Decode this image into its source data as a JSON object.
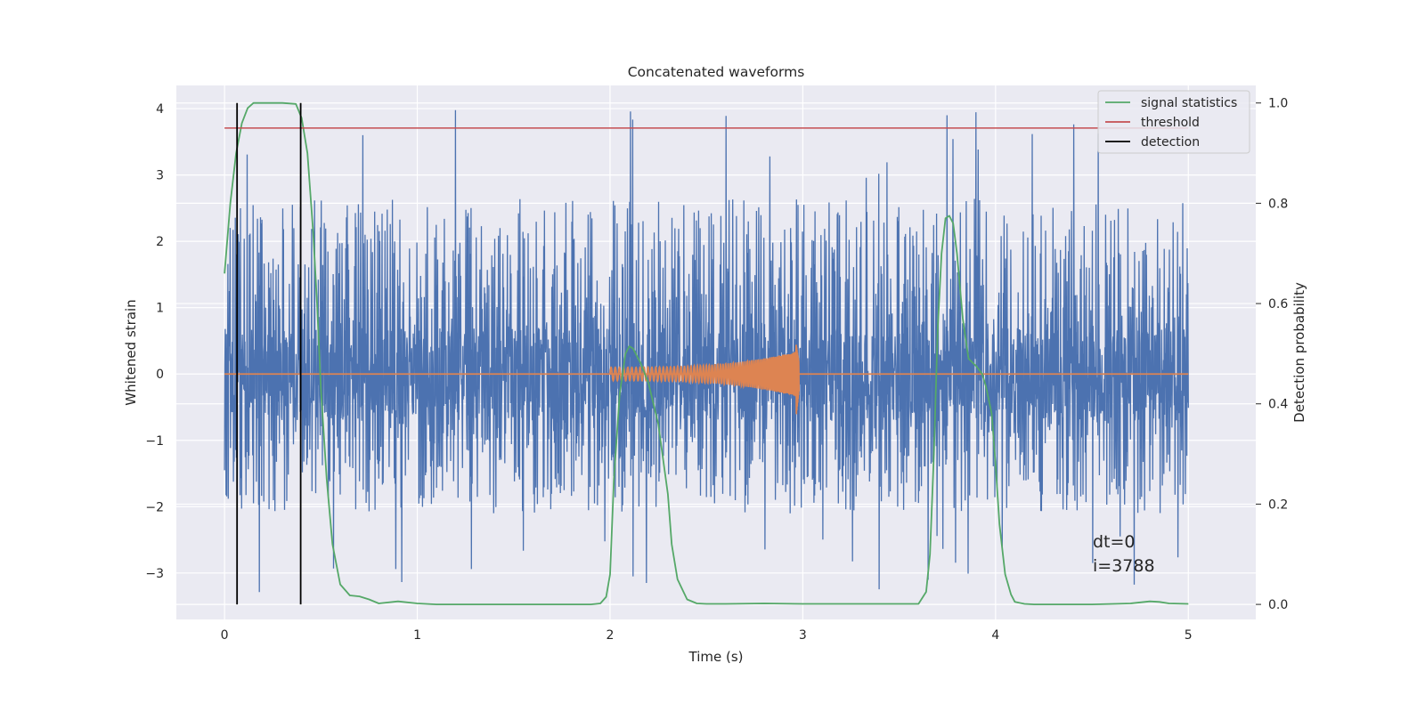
{
  "chart_data": {
    "type": "line",
    "title": "Concatenated waveforms",
    "xlabel": "Time (s)",
    "ylabel": "Whitened strain",
    "y2label": "Detection probability",
    "xlim": [
      -0.25,
      5.35
    ],
    "ylim": [
      -3.7,
      4.35
    ],
    "y2lim": [
      -0.03,
      1.035
    ],
    "x_ticks": [
      0,
      1,
      2,
      3,
      4,
      5
    ],
    "y_ticks": [
      -3,
      -2,
      -1,
      0,
      1,
      2,
      3,
      4
    ],
    "y2_ticks": [
      0.0,
      0.2,
      0.4,
      0.6,
      0.8,
      1.0
    ],
    "x_tick_labels": [
      "0",
      "1",
      "2",
      "3",
      "4",
      "5"
    ],
    "y_tick_labels": [
      "−3",
      "−2",
      "−1",
      "0",
      "1",
      "2",
      "3",
      "4"
    ],
    "y2_tick_labels": [
      "0.0",
      "0.2",
      "0.4",
      "0.6",
      "0.8",
      "1.0"
    ],
    "grid": true,
    "legend_position": "top-right",
    "colors": {
      "background": "#eaeaf2",
      "grid": "#ffffff",
      "noise": "#4c72b0",
      "injected_signal": "#dd8452",
      "signal_statistics": "#55a868",
      "threshold": "#c44e52",
      "detection": "#000000"
    },
    "series": [
      {
        "name": "signal statistics",
        "axis": "right",
        "x": [
          0,
          0.03,
          0.06,
          0.09,
          0.12,
          0.15,
          0.2,
          0.3,
          0.37,
          0.4,
          0.43,
          0.46,
          0.48,
          0.5,
          0.53,
          0.56,
          0.6,
          0.65,
          0.7,
          0.75,
          0.8,
          0.9,
          1.0,
          1.1,
          1.5,
          1.9,
          1.95,
          1.98,
          2.0,
          2.02,
          2.05,
          2.08,
          2.1,
          2.12,
          2.16,
          2.2,
          2.25,
          2.3,
          2.32,
          2.35,
          2.4,
          2.45,
          2.5,
          2.6,
          2.8,
          3.0,
          3.4,
          3.6,
          3.64,
          3.66,
          3.68,
          3.7,
          3.72,
          3.74,
          3.76,
          3.78,
          3.8,
          3.83,
          3.86,
          3.9,
          3.93,
          3.95,
          3.98,
          4.0,
          4.02,
          4.05,
          4.08,
          4.1,
          4.15,
          4.2,
          4.5,
          4.7,
          4.8,
          4.85,
          4.9,
          5.0
        ],
        "values": [
          0.66,
          0.8,
          0.9,
          0.96,
          0.99,
          1.0,
          1.0,
          1.0,
          0.998,
          0.97,
          0.9,
          0.74,
          0.6,
          0.43,
          0.25,
          0.12,
          0.04,
          0.018,
          0.016,
          0.01,
          0.002,
          0.006,
          0.002,
          0.0,
          0.0,
          0.0,
          0.002,
          0.015,
          0.06,
          0.25,
          0.42,
          0.5,
          0.515,
          0.51,
          0.48,
          0.44,
          0.36,
          0.22,
          0.12,
          0.05,
          0.01,
          0.002,
          0.001,
          0.001,
          0.002,
          0.001,
          0.001,
          0.001,
          0.025,
          0.1,
          0.3,
          0.55,
          0.7,
          0.77,
          0.775,
          0.76,
          0.7,
          0.57,
          0.49,
          0.475,
          0.46,
          0.435,
          0.38,
          0.28,
          0.16,
          0.06,
          0.02,
          0.005,
          0.001,
          0.0,
          0.0,
          0.002,
          0.006,
          0.005,
          0.002,
          0.001
        ]
      },
      {
        "name": "threshold",
        "axis": "right",
        "x": [
          0,
          5
        ],
        "values": [
          0.95,
          0.95
        ]
      },
      {
        "name": "detection",
        "axis": "right",
        "type": "vlines",
        "x": [
          0.065,
          0.395
        ],
        "range": [
          0.0,
          1.0
        ]
      }
    ],
    "noise_trace": {
      "axis": "left",
      "x_range": [
        0,
        5
      ],
      "amplitude_range": [
        -3.4,
        4.0
      ],
      "typical_envelope": [
        -2.0,
        2.6
      ]
    },
    "injected_chirp": {
      "axis": "left",
      "x_range": [
        2.0,
        2.98
      ],
      "amplitude_start": 0.1,
      "amplitude_peak": [
        0.45,
        -0.65
      ]
    },
    "annotations": [
      "dt=0",
      "i=3788"
    ]
  }
}
